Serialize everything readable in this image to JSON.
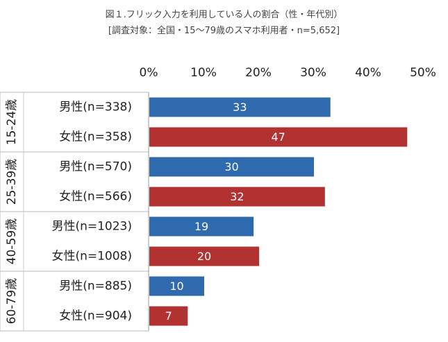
{
  "chart_data": {
    "type": "bar",
    "orientation": "horizontal",
    "title": "図１.フリック入力を利用している人の割合（性・年代別）",
    "subtitle": "[調査対象：全国・15～79歳のスマホ利用者・n=5,652]",
    "xlim": [
      0,
      50
    ],
    "x_ticks": [
      "0%",
      "10%",
      "20%",
      "30%",
      "40%",
      "50%"
    ],
    "x_tick_values": [
      0,
      10,
      20,
      30,
      40,
      50
    ],
    "groups": [
      {
        "label": "15-24歳",
        "rows": [
          {
            "label": "男性(n=338)",
            "value": 33,
            "value_label": "33",
            "color": "#2e6aad"
          },
          {
            "label": "女性(n=358)",
            "value": 47,
            "value_label": "47",
            "color": "#b23232"
          }
        ]
      },
      {
        "label": "25-39歳",
        "rows": [
          {
            "label": "男性(n=570)",
            "value": 30,
            "value_label": "30",
            "color": "#2e6aad"
          },
          {
            "label": "女性(n=566)",
            "value": 32,
            "value_label": "32",
            "color": "#b23232"
          }
        ]
      },
      {
        "label": "40-59歳",
        "rows": [
          {
            "label": "男性(n=1023)",
            "value": 19,
            "value_label": "19",
            "color": "#2e6aad"
          },
          {
            "label": "女性(n=1008)",
            "value": 20,
            "value_label": "20",
            "color": "#b23232"
          }
        ]
      },
      {
        "label": "60-79歳",
        "rows": [
          {
            "label": "男性(n=885)",
            "value": 10,
            "value_label": "10",
            "color": "#2e6aad"
          },
          {
            "label": "女性(n=904)",
            "value": 7,
            "value_label": "7",
            "color": "#b23232"
          }
        ]
      }
    ],
    "grid": false,
    "legend": "none"
  }
}
